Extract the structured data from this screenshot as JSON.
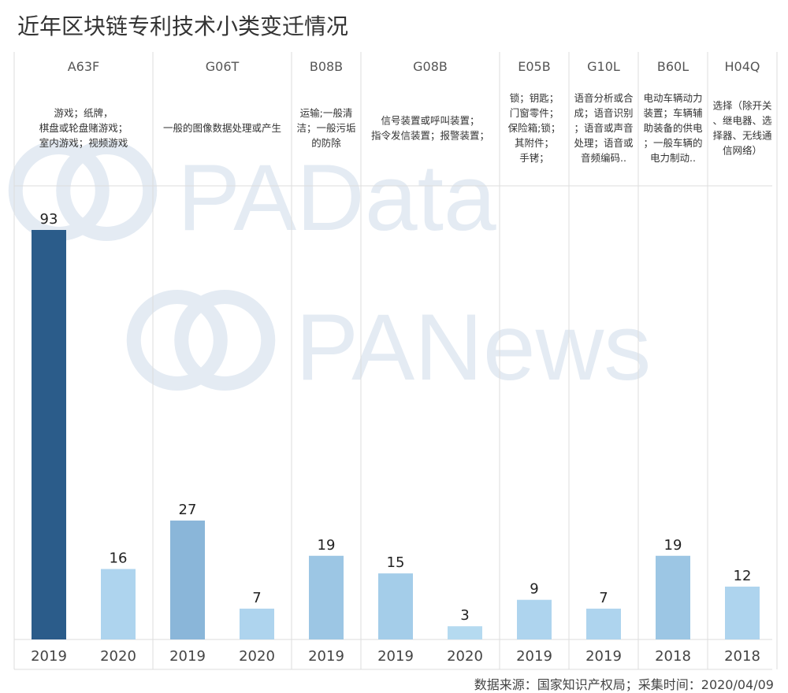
{
  "title": "近年区块链专利技术小类变迁情况",
  "source": "数据来源：国家知识产权局；采集时间：2020/04/09",
  "watermarks": [
    "PAData",
    "PANews"
  ],
  "colors": {
    "dark": "#2b5c8a",
    "medium": "#8ab6d9",
    "light": "#aed4ee",
    "grid": "#dddddd"
  },
  "chart_data": {
    "type": "bar",
    "title": "近年区块链专利技术小类变迁情况",
    "xlabel": "",
    "ylabel": "",
    "ylim": [
      0,
      100
    ],
    "grid": false,
    "groups": [
      {
        "code": "A63F",
        "desc": [
          "游戏；纸牌，",
          "棋盘或轮盘赌游戏；",
          "室内游戏；视频游戏"
        ],
        "bars": [
          {
            "year": "2019",
            "value": 93,
            "color": "#2b5c8a"
          },
          {
            "year": "2020",
            "value": 16,
            "color": "#aed4ee"
          }
        ]
      },
      {
        "code": "G06T",
        "desc": [
          "一般的图像数据处理或产生"
        ],
        "bars": [
          {
            "year": "2019",
            "value": 27,
            "color": "#8ab6d9"
          },
          {
            "year": "2020",
            "value": 7,
            "color": "#aed4ee"
          }
        ]
      },
      {
        "code": "B08B",
        "desc": [
          "运输;一般清",
          "洁；一般污垢",
          "的防除"
        ],
        "bars": [
          {
            "year": "2019",
            "value": 19,
            "color": "#9cc6e4"
          }
        ]
      },
      {
        "code": "G08B",
        "desc": [
          "信号装置或呼叫装置；",
          "指令发信装置；报警装置；"
        ],
        "bars": [
          {
            "year": "2019",
            "value": 15,
            "color": "#a4cde9"
          },
          {
            "year": "2020",
            "value": 3,
            "color": "#b5daf0"
          }
        ]
      },
      {
        "code": "E05B",
        "desc": [
          "锁；钥匙；",
          "门窗零件；",
          "保险箱;锁；",
          "其附件；",
          "手铐；"
        ],
        "bars": [
          {
            "year": "2019",
            "value": 9,
            "color": "#aed4ee"
          }
        ]
      },
      {
        "code": "G10L",
        "desc": [
          "语音分析或合",
          "成；语音识别",
          "；语音或声音",
          "处理；语音或",
          "音频编码.."
        ],
        "bars": [
          {
            "year": "2019",
            "value": 7,
            "color": "#aed4ee"
          }
        ]
      },
      {
        "code": "B60L",
        "desc": [
          "电动车辆动力",
          "装置；车辆辅",
          "助装备的供电",
          "；一般车辆的",
          "电力制动.."
        ],
        "bars": [
          {
            "year": "2018",
            "value": 19,
            "color": "#9cc6e4"
          }
        ]
      },
      {
        "code": "H04Q",
        "desc": [
          "选择（除开关",
          "、继电器、选",
          "择器、无线通",
          "信网络）"
        ],
        "bars": [
          {
            "year": "2018",
            "value": 12,
            "color": "#aed4ee"
          }
        ]
      }
    ]
  }
}
